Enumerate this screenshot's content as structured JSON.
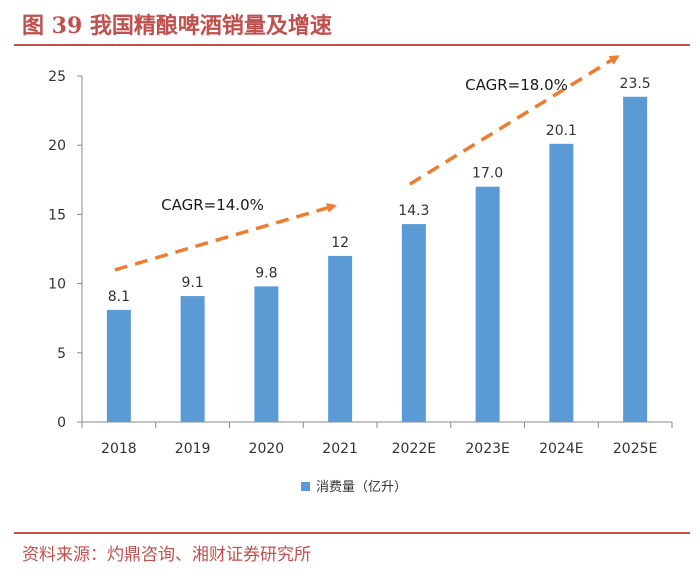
{
  "figure": {
    "title": "图 39 我国精酿啤酒销量及增速",
    "source": "资料来源：灼鼎咨询、湘财证券研究所"
  },
  "colors": {
    "accent": "#c0504d",
    "bar": "#5b9bd5",
    "arrow": "#ed7d31"
  },
  "chart_data": {
    "type": "bar",
    "categories": [
      "2018",
      "2019",
      "2020",
      "2021",
      "2022E",
      "2023E",
      "2024E",
      "2025E"
    ],
    "series": [
      {
        "name": "消费量（亿升）",
        "values": [
          8.1,
          9.1,
          9.8,
          12,
          14.3,
          17.0,
          20.1,
          23.5
        ]
      }
    ],
    "data_labels": [
      "8.1",
      "9.1",
      "9.8",
      "12",
      "14.3",
      "17.0",
      "20.1",
      "23.5"
    ],
    "ylim": [
      0,
      25
    ],
    "yticks": [
      0,
      5,
      10,
      15,
      20,
      25
    ],
    "grid": false,
    "legend_position": "bottom",
    "annotations": [
      {
        "text": "CAGR=14.0%",
        "from_category": "2018",
        "to_category": "2021"
      },
      {
        "text": "CAGR=18.0%",
        "from_category": "2022E",
        "to_category": "2025E"
      }
    ]
  }
}
